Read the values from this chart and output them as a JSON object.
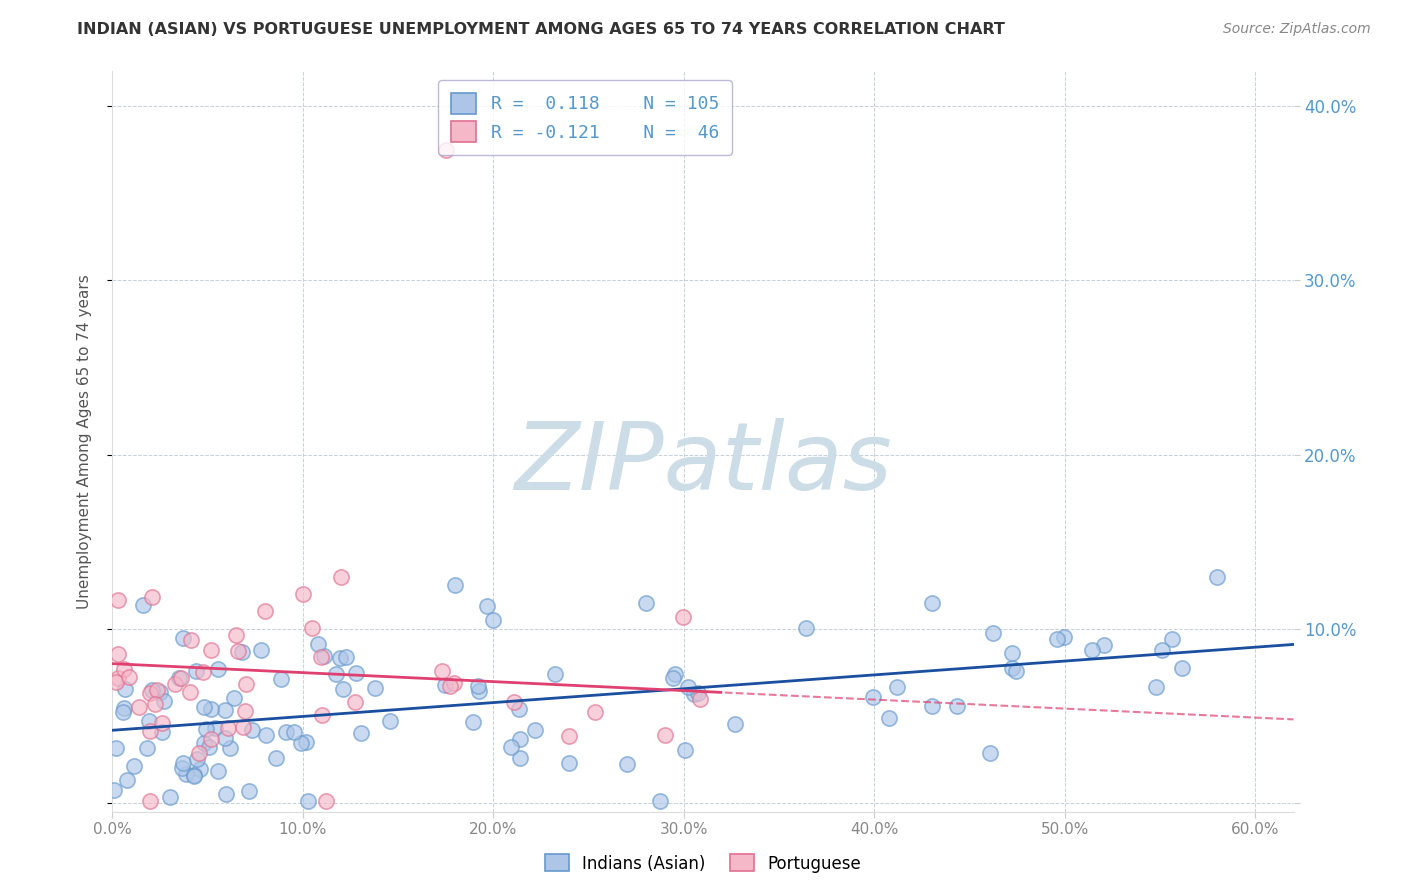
{
  "title": "INDIAN (ASIAN) VS PORTUGUESE UNEMPLOYMENT AMONG AGES 65 TO 74 YEARS CORRELATION CHART",
  "source": "Source: ZipAtlas.com",
  "ylabel": "Unemployment Among Ages 65 to 74 years",
  "xlim": [
    0.0,
    0.62
  ],
  "ylim": [
    -0.005,
    0.42
  ],
  "xticks": [
    0.0,
    0.1,
    0.2,
    0.3,
    0.4,
    0.5,
    0.6
  ],
  "yticks": [
    0.0,
    0.1,
    0.2,
    0.3,
    0.4
  ],
  "xtick_labels": [
    "0.0%",
    "10.0%",
    "20.0%",
    "30.0%",
    "40.0%",
    "50.0%",
    "60.0%"
  ],
  "ytick_labels_right": [
    "",
    "10.0%",
    "20.0%",
    "30.0%",
    "40.0%"
  ],
  "blue_fill_color": "#adc6e8",
  "blue_edge_color": "#6699cc",
  "pink_fill_color": "#f5b8c8",
  "pink_edge_color": "#e07090",
  "blue_line_color": "#1a4fa0",
  "pink_line_color": "#e04070",
  "pink_line_dash": "#e08090",
  "legend_blue_label": "Indians (Asian)",
  "legend_pink_label": "Portuguese",
  "R_blue": 0.118,
  "N_blue": 105,
  "R_pink": -0.121,
  "N_pink": 46,
  "watermark": "ZIPatlas",
  "watermark_color": "#ccdde8",
  "grid_color": "#c0ccd8",
  "background_color": "#ffffff",
  "title_color": "#333333",
  "source_color": "#888888",
  "label_color": "#555555",
  "tick_color_right": "#5599cc",
  "tick_color_x": "#888888"
}
